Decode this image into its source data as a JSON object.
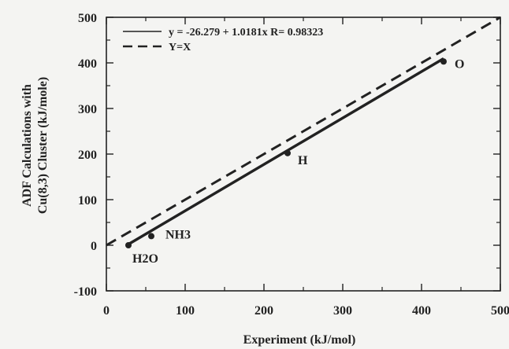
{
  "chart_data": {
    "type": "scatter",
    "xlabel": "Experiment (kJ/mol)",
    "ylabel_line1": "ADF Calculations with",
    "ylabel_line2": "Cu(8,3) Cluster  (kJ/mole)",
    "xlim": [
      0,
      500
    ],
    "ylim": [
      -100,
      500
    ],
    "xticks": [
      0,
      100,
      200,
      300,
      400,
      500
    ],
    "yticks": [
      -100,
      0,
      100,
      200,
      300,
      400,
      500
    ],
    "grid": false,
    "legend_position": "top-left",
    "points": [
      {
        "label": "H2O",
        "x": 28,
        "y": 0
      },
      {
        "label": "NH3",
        "x": 57,
        "y": 20
      },
      {
        "label": "H",
        "x": 230,
        "y": 202
      },
      {
        "label": "O",
        "x": 428,
        "y": 403
      }
    ],
    "fit": {
      "intercept": -26.279,
      "slope": 1.0181,
      "x_range": [
        28,
        428
      ]
    },
    "series": [
      {
        "name": "y = -26.279 + 1.0181x R= 0.98323",
        "style": "solid"
      },
      {
        "name": "Y=X",
        "style": "dashed"
      }
    ]
  }
}
